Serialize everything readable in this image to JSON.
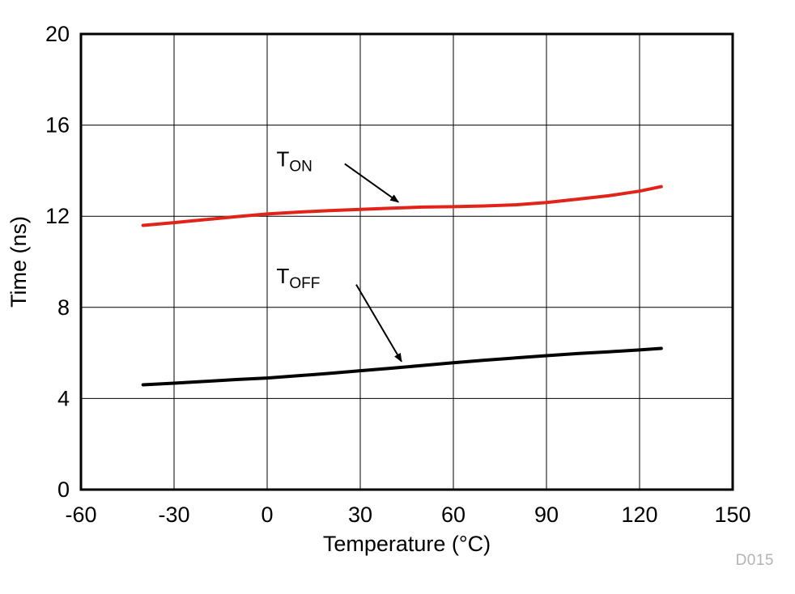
{
  "watermark": "D015",
  "style": {
    "grid_color": "#000000",
    "border_color": "#000000",
    "arrow_color": "#000000",
    "watermark_color": "#b1b3b6"
  },
  "chart_data": {
    "type": "line",
    "title": "",
    "xlabel": "Temperature (°C)",
    "ylabel": "Time (ns)",
    "xlim": [
      -60,
      150
    ],
    "ylim": [
      0,
      20
    ],
    "xticks": [
      -60,
      -30,
      0,
      30,
      60,
      90,
      120,
      150
    ],
    "yticks": [
      0,
      4,
      8,
      12,
      16,
      20
    ],
    "grid": true,
    "legend": "none",
    "series": [
      {
        "name": "T_ON",
        "color": "#e2231a",
        "x": [
          -40,
          -30,
          -20,
          -10,
          0,
          10,
          20,
          30,
          40,
          50,
          60,
          70,
          80,
          90,
          100,
          110,
          120,
          127
        ],
        "y": [
          11.6,
          11.72,
          11.85,
          11.98,
          12.1,
          12.18,
          12.25,
          12.3,
          12.35,
          12.4,
          12.42,
          12.45,
          12.5,
          12.6,
          12.75,
          12.9,
          13.1,
          13.3
        ]
      },
      {
        "name": "T_OFF",
        "color": "#000000",
        "x": [
          -40,
          -30,
          -20,
          -10,
          0,
          10,
          20,
          30,
          40,
          50,
          60,
          70,
          80,
          90,
          100,
          110,
          120,
          127
        ],
        "y": [
          4.6,
          4.67,
          4.75,
          4.83,
          4.9,
          5.0,
          5.1,
          5.22,
          5.33,
          5.45,
          5.57,
          5.68,
          5.78,
          5.88,
          5.97,
          6.05,
          6.13,
          6.2
        ]
      }
    ],
    "annotations": [
      {
        "text_main": "T",
        "text_sub": "ON",
        "x": 3,
        "y": 14.2,
        "arrow": {
          "x1": 25,
          "y1": 14.3,
          "x2": 42.3,
          "y2": 12.62
        }
      },
      {
        "text_main": "T",
        "text_sub": "OFF",
        "x": 3,
        "y": 9.05,
        "arrow": {
          "x1": 28.7,
          "y1": 9.0,
          "x2": 43.3,
          "y2": 5.62
        }
      }
    ]
  }
}
